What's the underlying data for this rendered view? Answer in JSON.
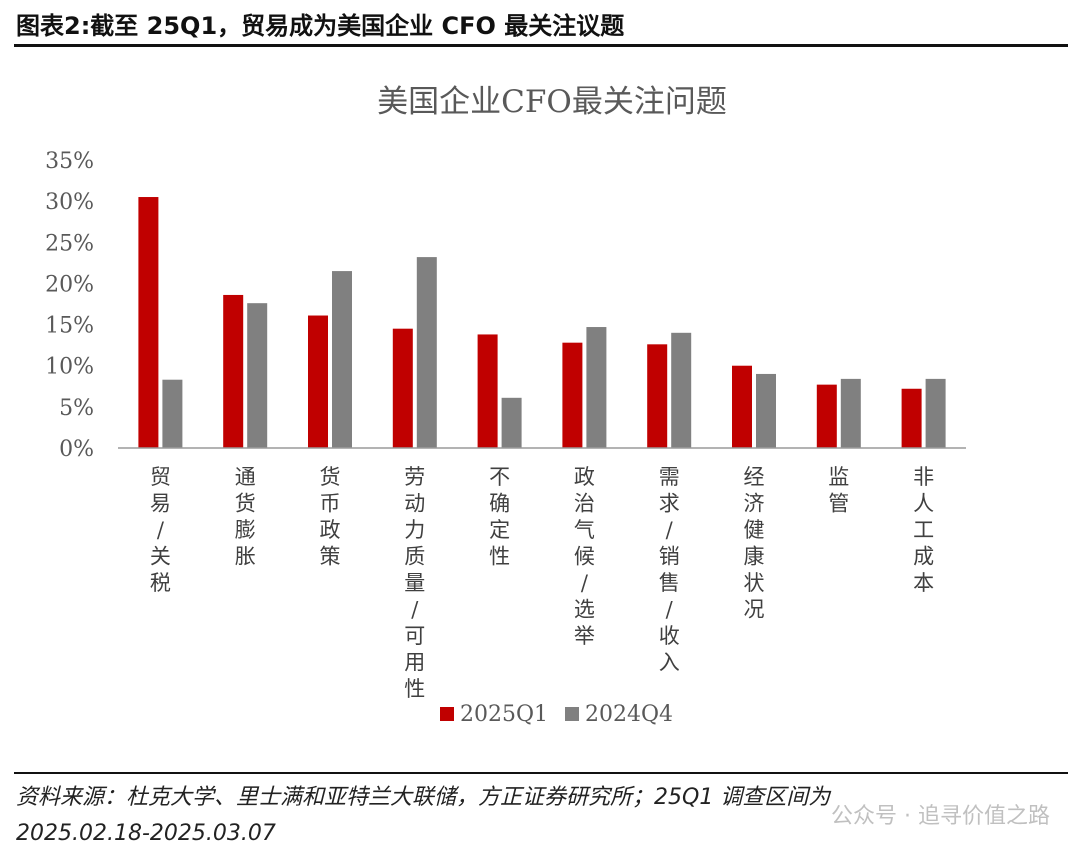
{
  "header": {
    "title": "图表2:截至 25Q1，贸易成为美国企业 CFO 最关注议题"
  },
  "footer": {
    "source_line1": "资料来源：杜克大学、里士满和亚特兰大联储，方正证券研究所；25Q1 调查区间为",
    "source_line2": "2025.02.18-2025.03.07",
    "watermark": "公众号 · 追寻价值之路"
  },
  "colors": {
    "series_2025Q1": "#C00000",
    "series_2024Q4": "#808080",
    "axis": "#7f7f7f",
    "text": "#595959"
  },
  "chart_data": {
    "type": "bar",
    "title": "美国企业CFO最关注问题",
    "categories": [
      "贸易/关税",
      "通货膨胀",
      "货币政策",
      "劳动力质量/可用性",
      "不确定性",
      "政治气候/选举",
      "需求/销售/收入",
      "经济健康状况",
      "监管",
      "非人工成本"
    ],
    "series": [
      {
        "name": "2025Q1",
        "values": [
          30.5,
          18.6,
          16.1,
          14.5,
          13.8,
          12.8,
          12.6,
          10.0,
          7.7,
          7.2
        ]
      },
      {
        "name": "2024Q4",
        "values": [
          8.3,
          17.6,
          21.5,
          23.2,
          6.1,
          14.7,
          14.0,
          9.0,
          8.4,
          8.4
        ]
      }
    ],
    "ylim": [
      0,
      35
    ],
    "yticks": [
      "0%",
      "5%",
      "10%",
      "15%",
      "20%",
      "25%",
      "30%",
      "35%"
    ],
    "grid": false,
    "legend": "bottom"
  }
}
